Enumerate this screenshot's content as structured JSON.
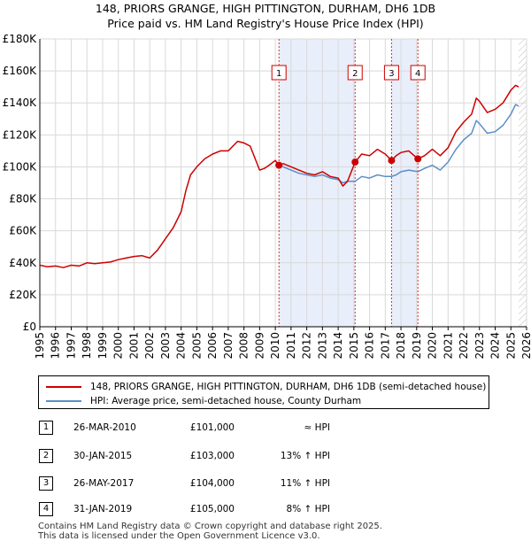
{
  "chart_data": {
    "type": "line",
    "title": "148, PRIORS GRANGE, HIGH PITTINGTON, DURHAM, DH6 1DB",
    "subtitle": "Price paid vs. HM Land Registry's House Price Index (HPI)",
    "xlabel": "",
    "ylabel": "",
    "xlim": [
      1995,
      2026
    ],
    "ylim": [
      0,
      180000
    ],
    "y_ticks": [
      0,
      20000,
      40000,
      60000,
      80000,
      100000,
      120000,
      140000,
      160000,
      180000
    ],
    "y_tick_labels": [
      "£0",
      "£20K",
      "£40K",
      "£60K",
      "£80K",
      "£100K",
      "£120K",
      "£140K",
      "£160K",
      "£180K"
    ],
    "x_ticks": [
      1995,
      1996,
      1997,
      1998,
      1999,
      2000,
      2001,
      2002,
      2003,
      2004,
      2005,
      2006,
      2007,
      2008,
      2009,
      2010,
      2011,
      2012,
      2013,
      2014,
      2015,
      2016,
      2017,
      2018,
      2019,
      2020,
      2021,
      2022,
      2023,
      2024,
      2025,
      2026
    ],
    "x_tick_labels": [
      "1995",
      "1996",
      "1997",
      "1998",
      "1999",
      "2000",
      "2001",
      "2002",
      "2003",
      "2004",
      "2005",
      "2006",
      "2007",
      "2008",
      "2009",
      "2010",
      "2011",
      "2012",
      "2013",
      "2014",
      "2015",
      "2016",
      "2017",
      "2018",
      "2019",
      "2020",
      "2021",
      "2022",
      "2023",
      "2024",
      "2025",
      "2026"
    ],
    "grid": true,
    "shaded_spans": [
      [
        2010.23,
        2015.08
      ],
      [
        2017.4,
        2019.08
      ]
    ],
    "future_hatch_start": 2025.5,
    "series": [
      {
        "name": "148, PRIORS GRANGE, HIGH PITTINGTON, DURHAM, DH6 1DB (semi-detached house)",
        "color": "#cc0000",
        "x": [
          1995.0,
          1995.5,
          1996.0,
          1996.5,
          1997.0,
          1997.5,
          1998.0,
          1998.5,
          1999.0,
          1999.5,
          2000.0,
          2000.5,
          2001.0,
          2001.5,
          2002.0,
          2002.5,
          2003.0,
          2003.5,
          2004.0,
          2004.3,
          2004.6,
          2005.0,
          2005.5,
          2006.0,
          2006.5,
          2007.0,
          2007.3,
          2007.6,
          2008.0,
          2008.4,
          2008.8,
          2009.0,
          2009.3,
          2009.6,
          2010.0,
          2010.23,
          2010.5,
          2011.0,
          2011.5,
          2012.0,
          2012.5,
          2013.0,
          2013.5,
          2014.0,
          2014.3,
          2014.6,
          2015.08,
          2015.5,
          2016.0,
          2016.5,
          2017.0,
          2017.4,
          2017.7,
          2018.0,
          2018.5,
          2019.08,
          2019.5,
          2020.0,
          2020.5,
          2021.0,
          2021.5,
          2022.0,
          2022.5,
          2022.8,
          2023.0,
          2023.5,
          2024.0,
          2024.5,
          2025.0,
          2025.3,
          2025.5
        ],
        "values": [
          38500,
          37500,
          38000,
          37000,
          38500,
          38000,
          40000,
          39500,
          40000,
          40500,
          42000,
          43000,
          44000,
          44500,
          43000,
          48000,
          55000,
          62000,
          72000,
          85000,
          95000,
          100000,
          105000,
          108000,
          110000,
          110000,
          113000,
          116000,
          115000,
          113000,
          103000,
          98000,
          99000,
          101000,
          104000,
          101000,
          102000,
          100000,
          98000,
          96000,
          95000,
          97000,
          94000,
          93000,
          88000,
          91000,
          103000,
          108000,
          107000,
          111000,
          108000,
          104000,
          107000,
          109000,
          110000,
          105000,
          107000,
          111000,
          107000,
          112000,
          122000,
          128000,
          133000,
          143000,
          141000,
          134000,
          136000,
          140000,
          148000,
          151000,
          150000
        ]
      },
      {
        "name": "HPI: Average price, semi-detached house, County Durham",
        "color": "#5b8ec9",
        "x": [
          2010.23,
          2010.5,
          2011.0,
          2011.5,
          2012.0,
          2012.5,
          2013.0,
          2013.5,
          2014.0,
          2014.3,
          2014.6,
          2015.08,
          2015.5,
          2016.0,
          2016.5,
          2017.0,
          2017.4,
          2017.7,
          2018.0,
          2018.5,
          2019.08,
          2019.5,
          2020.0,
          2020.5,
          2021.0,
          2021.5,
          2022.0,
          2022.5,
          2022.8,
          2023.0,
          2023.5,
          2024.0,
          2024.5,
          2025.0,
          2025.3,
          2025.5
        ],
        "values": [
          101000,
          100000,
          98000,
          96000,
          95000,
          94000,
          95000,
          93000,
          92000,
          90000,
          91000,
          91000,
          94000,
          93000,
          95000,
          94000,
          94000,
          95000,
          97000,
          98000,
          97000,
          99000,
          101000,
          98000,
          103000,
          111000,
          117000,
          121000,
          129000,
          127000,
          121000,
          122000,
          126000,
          133000,
          139000,
          138000
        ]
      }
    ],
    "sale_markers": [
      {
        "label": "1",
        "x": 2010.23,
        "value": 101000
      },
      {
        "label": "2",
        "x": 2015.08,
        "value": 103000
      },
      {
        "label": "3",
        "x": 2017.4,
        "value": 104000
      },
      {
        "label": "4",
        "x": 2019.08,
        "value": 105000
      }
    ]
  },
  "legend": {
    "property_label": "148, PRIORS GRANGE, HIGH PITTINGTON, DURHAM, DH6 1DB (semi-detached house)",
    "hpi_label": "HPI: Average price, semi-detached house, County Durham"
  },
  "sales": [
    {
      "num": "1",
      "date": "26-MAR-2010",
      "price": "£101,000",
      "relation": "≈ HPI"
    },
    {
      "num": "2",
      "date": "30-JAN-2015",
      "price": "£103,000",
      "relation": "13% ↑ HPI"
    },
    {
      "num": "3",
      "date": "26-MAY-2017",
      "price": "£104,000",
      "relation": "11% ↑ HPI"
    },
    {
      "num": "4",
      "date": "31-JAN-2019",
      "price": "£105,000",
      "relation": "8% ↑ HPI"
    }
  ],
  "footer": {
    "line1": "Contains HM Land Registry data © Crown copyright and database right 2025.",
    "line2": "This data is licensed under the Open Government Licence v3.0."
  },
  "colors": {
    "property": "#cc0000",
    "hpi": "#5b8ec9",
    "shade": "#e8eefa",
    "marker_line": "#cc0000",
    "plot_bg": "#ffffff"
  }
}
